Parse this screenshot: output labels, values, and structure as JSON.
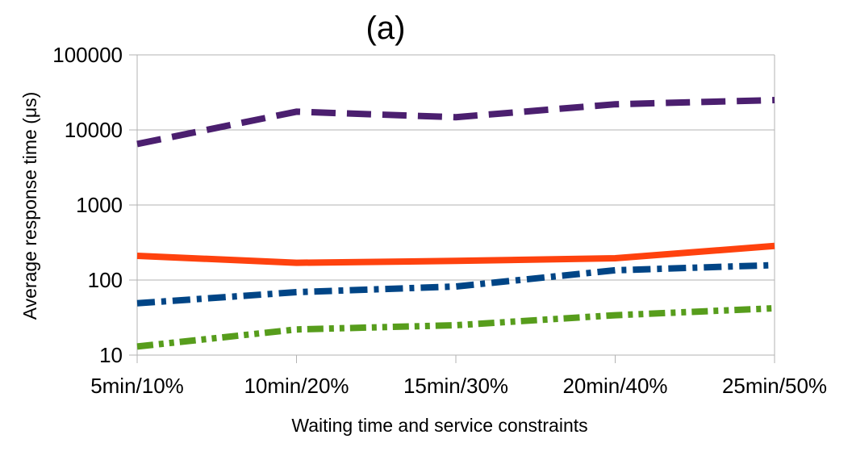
{
  "chart_data": {
    "type": "line",
    "title": "(a)",
    "xlabel": "Waiting time and service constraints",
    "ylabel": "Average response time (μs)",
    "yscale": "log",
    "ylim": [
      10,
      100000
    ],
    "yticks": [
      "10",
      "100",
      "1000",
      "10000",
      "100000"
    ],
    "categories": [
      "5min/10%",
      "10min/20%",
      "15min/30%",
      "20min/40%",
      "25min/50%"
    ],
    "grid": "horizontal",
    "legend": "none",
    "series": [
      {
        "color": "#4b1f6f",
        "style": "dashed",
        "values": [
          6500,
          17500,
          14800,
          22000,
          25000
        ]
      },
      {
        "color": "#ff420e",
        "style": "solid",
        "values": [
          210,
          170,
          180,
          195,
          285
        ]
      },
      {
        "color": "#004586",
        "style": "dash-dot",
        "values": [
          49,
          69,
          82,
          135,
          158
        ]
      },
      {
        "color": "#579d1c",
        "style": "dash-dot-dot",
        "values": [
          13,
          22,
          25,
          34,
          42
        ]
      }
    ]
  }
}
